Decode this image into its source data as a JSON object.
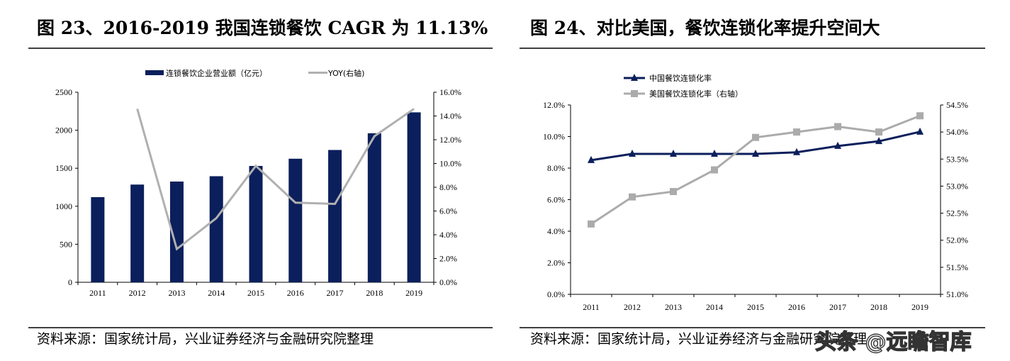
{
  "chart_data": [
    {
      "type": "bar",
      "title": "图 23、2016-2019 我国连锁餐饮 CAGR 为 11.13%",
      "categories": [
        "2011",
        "2012",
        "2013",
        "2014",
        "2015",
        "2016",
        "2017",
        "2018",
        "2019"
      ],
      "series": [
        {
          "name": "连锁餐饮企业营业额（亿元）",
          "type": "bar",
          "axis": "left",
          "color": "#0b1f5c",
          "values": [
            1120,
            1285,
            1325,
            1395,
            1530,
            1625,
            1740,
            1960,
            2235
          ]
        },
        {
          "name": "YOY(右轴)",
          "type": "line",
          "axis": "right",
          "color": "#b0b0b0",
          "values": [
            null,
            14.6,
            2.8,
            5.4,
            9.8,
            6.7,
            6.6,
            12.3,
            14.6
          ]
        }
      ],
      "ylim": [
        0,
        2500
      ],
      "yticks": [
        "0",
        "500",
        "1000",
        "1500",
        "2000",
        "2500"
      ],
      "y2lim": [
        0,
        16
      ],
      "y2ticks": [
        "0.0%",
        "2.0%",
        "4.0%",
        "6.0%",
        "8.0%",
        "10.0%",
        "12.0%",
        "14.0%",
        "16.0%"
      ],
      "legend": "top-center",
      "grid": false,
      "source": "资料来源：国家统计局，兴业证券经济与金融研究院整理"
    },
    {
      "type": "line",
      "title": "图 24、对比美国，餐饮连锁化率提升空间大",
      "categories": [
        "2011",
        "2012",
        "2013",
        "2014",
        "2015",
        "2016",
        "2017",
        "2018",
        "2019"
      ],
      "series": [
        {
          "name": "中国餐饮连锁化率",
          "axis": "left",
          "marker": "triangle",
          "color": "#0b1f5c",
          "values": [
            8.5,
            8.9,
            8.9,
            8.9,
            8.9,
            9.0,
            9.4,
            9.7,
            10.3
          ]
        },
        {
          "name": "美国餐饮连锁化率（右轴）",
          "axis": "right",
          "marker": "square",
          "color": "#ababab",
          "values": [
            52.3,
            52.8,
            52.9,
            53.3,
            53.9,
            54.0,
            54.1,
            54.0,
            54.3
          ]
        }
      ],
      "ylim": [
        0,
        12
      ],
      "yticks": [
        "0.0%",
        "2.0%",
        "4.0%",
        "6.0%",
        "8.0%",
        "10.0%",
        "12.0%"
      ],
      "y2lim": [
        51,
        54.5
      ],
      "y2ticks": [
        "51.0%",
        "51.5%",
        "52.0%",
        "52.5%",
        "53.0%",
        "53.5%",
        "54.0%",
        "54.5%"
      ],
      "legend": "top-left",
      "grid": false,
      "source": "资料来源：国家统计局，兴业证券经济与金融研究院整理"
    }
  ],
  "watermark": "头条 @远瞻智库"
}
